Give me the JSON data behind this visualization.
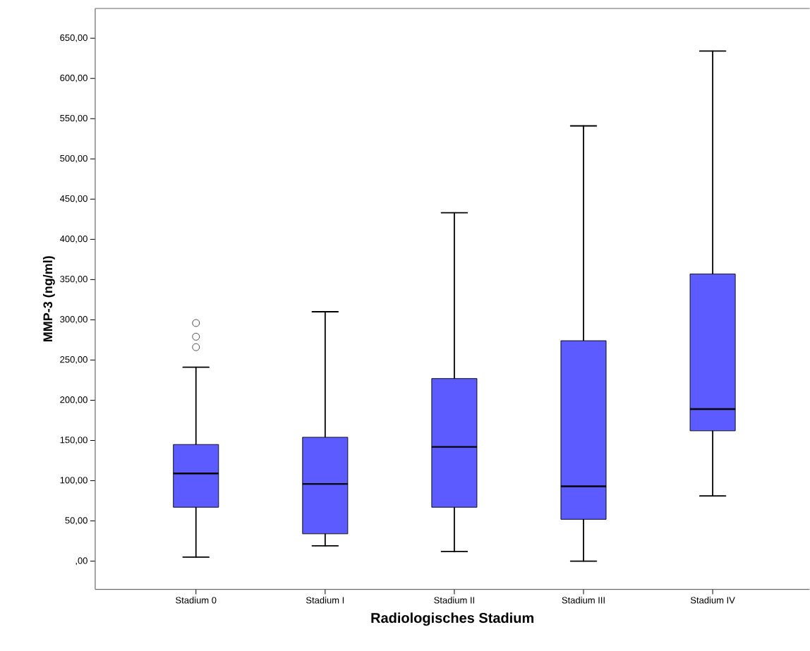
{
  "chart_data": {
    "type": "box",
    "xlabel": "Radiologisches Stadium",
    "ylabel": "MMP-3 (ng/ml)",
    "categories": [
      "Stadium 0",
      "Stadium I",
      "Stadium II",
      "Stadium III",
      "Stadium IV"
    ],
    "color": "#5b5bff",
    "boxes": [
      {
        "low": 5,
        "q1": 67,
        "median": 109,
        "q3": 145,
        "high": 241,
        "outliers": [
          266,
          279,
          296
        ]
      },
      {
        "low": 19,
        "q1": 34,
        "median": 96,
        "q3": 154,
        "high": 310
      },
      {
        "low": 12,
        "q1": 67,
        "median": 142,
        "q3": 227,
        "high": 433
      },
      {
        "low": 0,
        "q1": 52,
        "median": 93,
        "q3": 274,
        "high": 541
      },
      {
        "low": 81,
        "q1": 162,
        "median": 189,
        "q3": 357,
        "high": 634
      }
    ],
    "ylim": [
      -35,
      687
    ],
    "yticks": [
      {
        "value": 0,
        "label": ",00"
      },
      {
        "value": 50,
        "label": "50,00"
      },
      {
        "value": 100,
        "label": "100,00"
      },
      {
        "value": 150,
        "label": "150,00"
      },
      {
        "value": 200,
        "label": "200,00"
      },
      {
        "value": 250,
        "label": "250,00"
      },
      {
        "value": 300,
        "label": "300,00"
      },
      {
        "value": 350,
        "label": "350,00"
      },
      {
        "value": 400,
        "label": "400,00"
      },
      {
        "value": 450,
        "label": "450,00"
      },
      {
        "value": 500,
        "label": "500,00"
      },
      {
        "value": 550,
        "label": "550,00"
      },
      {
        "value": 600,
        "label": "600,00"
      },
      {
        "value": 650,
        "label": "650,00"
      }
    ]
  }
}
